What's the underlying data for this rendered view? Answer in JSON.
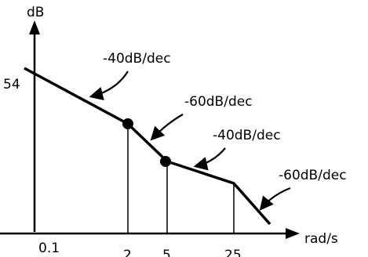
{
  "axes": {
    "y_label": "dB",
    "x_label": "rad/s"
  },
  "ticks": {
    "x": [
      "0.1",
      "2",
      "5",
      "25"
    ],
    "y": [
      "54"
    ]
  },
  "slopes": [
    "-40dB/dec",
    "-60dB/dec",
    "-40dB/dec",
    "-60dB/dec"
  ],
  "colors": {
    "ink": "#000000",
    "background": "#ffffff"
  }
}
